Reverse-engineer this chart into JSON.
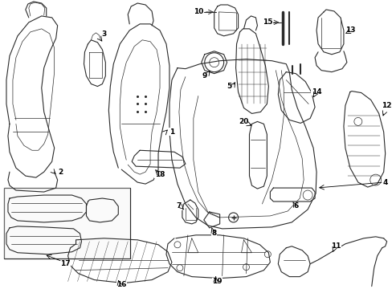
{
  "bg_color": "#ffffff",
  "line_color": "#2a2a2a",
  "figsize": [
    4.89,
    3.6
  ],
  "dpi": 100,
  "xlim": [
    0,
    489
  ],
  "ylim": [
    360,
    0
  ]
}
